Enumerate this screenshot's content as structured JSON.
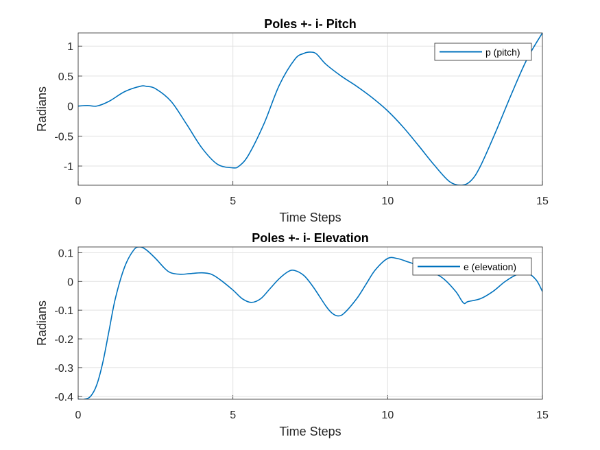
{
  "chart_data": [
    {
      "type": "line",
      "title": "Poles +- i- Pitch",
      "xlabel": "Time Steps",
      "ylabel": "Radians",
      "xlim": [
        0,
        15
      ],
      "ylim": [
        -1.32,
        1.22
      ],
      "xticks": [
        0,
        5,
        10,
        15
      ],
      "yticks": [
        1,
        0.5,
        0,
        -0.5,
        -1
      ],
      "xtick_labels": [
        "0",
        "5",
        "10",
        "15"
      ],
      "ytick_labels": [
        "1",
        "0.5",
        "0",
        "-0.5",
        "-1"
      ],
      "grid": true,
      "legend_position": "top-right",
      "color": "#0072BD",
      "series": [
        {
          "name": "p (pitch)",
          "x": [
            0,
            0.3,
            0.6,
            1.0,
            1.5,
            2.0,
            2.2,
            2.5,
            3.0,
            3.5,
            4.0,
            4.5,
            5.0,
            5.2,
            5.5,
            6.0,
            6.5,
            7.0,
            7.3,
            7.5,
            7.7,
            8.0,
            8.5,
            9.0,
            9.5,
            10.0,
            10.5,
            11.0,
            11.5,
            12.0,
            12.4,
            12.7,
            13.0,
            13.5,
            14.0,
            14.5,
            15.0
          ],
          "values": [
            0.0,
            0.01,
            0.0,
            0.08,
            0.24,
            0.33,
            0.33,
            0.29,
            0.08,
            -0.3,
            -0.7,
            -0.97,
            -1.03,
            -1.0,
            -0.82,
            -0.3,
            0.35,
            0.78,
            0.88,
            0.9,
            0.87,
            0.7,
            0.5,
            0.33,
            0.14,
            -0.08,
            -0.35,
            -0.66,
            -0.98,
            -1.26,
            -1.32,
            -1.24,
            -1.0,
            -0.42,
            0.2,
            0.78,
            1.22
          ]
        }
      ]
    },
    {
      "type": "line",
      "title": "Poles +- i- Elevation",
      "xlabel": "Time Steps",
      "ylabel": "Radians",
      "xlim": [
        0,
        15
      ],
      "ylim": [
        -0.41,
        0.12
      ],
      "xticks": [
        0,
        5,
        10,
        15
      ],
      "yticks": [
        0.1,
        0,
        -0.1,
        -0.2,
        -0.3,
        -0.4
      ],
      "xtick_labels": [
        "0",
        "5",
        "10",
        "15"
      ],
      "ytick_labels": [
        "0.1",
        "0",
        "-0.1",
        "-0.2",
        "-0.3",
        "-0.4"
      ],
      "grid": true,
      "legend_position": "top-right",
      "color": "#0072BD",
      "series": [
        {
          "name": "e (elevation)",
          "x": [
            0,
            0.2,
            0.4,
            0.6,
            0.8,
            1.0,
            1.2,
            1.5,
            1.8,
            2.0,
            2.2,
            2.5,
            2.8,
            3.0,
            3.3,
            3.6,
            4.0,
            4.3,
            4.6,
            5.0,
            5.3,
            5.6,
            5.9,
            6.2,
            6.5,
            6.8,
            7.0,
            7.3,
            7.6,
            8.0,
            8.2,
            8.4,
            8.6,
            9.0,
            9.3,
            9.6,
            10.0,
            10.3,
            10.6,
            11.0,
            11.4,
            11.8,
            12.2,
            12.45,
            12.6,
            13.0,
            13.4,
            13.8,
            14.2,
            14.5,
            14.8,
            15.0
          ],
          "values": [
            -0.41,
            -0.41,
            -0.4,
            -0.36,
            -0.28,
            -0.17,
            -0.06,
            0.05,
            0.11,
            0.12,
            0.11,
            0.08,
            0.045,
            0.03,
            0.025,
            0.027,
            0.03,
            0.025,
            0.005,
            -0.03,
            -0.06,
            -0.073,
            -0.06,
            -0.025,
            0.01,
            0.035,
            0.038,
            0.02,
            -0.02,
            -0.085,
            -0.11,
            -0.12,
            -0.11,
            -0.06,
            -0.01,
            0.04,
            0.08,
            0.08,
            0.07,
            0.055,
            0.035,
            0.01,
            -0.035,
            -0.075,
            -0.07,
            -0.06,
            -0.035,
            0.0,
            0.025,
            0.03,
            0.005,
            -0.035
          ]
        }
      ]
    }
  ]
}
